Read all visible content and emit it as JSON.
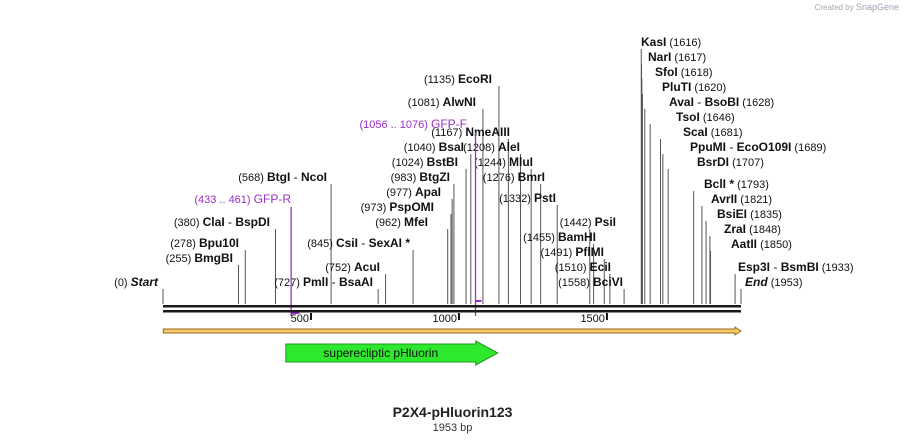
{
  "credit": {
    "prefix": "Created by",
    "brand": "SnapGene"
  },
  "plasmid": {
    "name": "P2X4-pHluorin123",
    "length_label": "1953 bp",
    "length": 1953
  },
  "colors": {
    "line": "#444444",
    "primer": "#9b30c8",
    "feature_fill": "#2ee82e",
    "feature_stroke": "#1a9a1a",
    "arrow_fill": "#f7c66b",
    "arrow_stroke": "#9a6a1a"
  },
  "ticks": [
    500,
    1000,
    1500
  ],
  "ticks_text": [
    "500",
    "1000",
    "1500"
  ],
  "feature": {
    "label": "superecliptic pHluorin",
    "start": 415,
    "end": 1131
  },
  "orf": {
    "start": 1,
    "end": 1953
  },
  "primers": [
    {
      "label": "GFP-R",
      "range": "(433 .. 461)",
      "start": 433,
      "end": 461
    },
    {
      "label": "GFP-F",
      "range": "(1056 .. 1076)",
      "start": 1056,
      "end": 1076
    }
  ],
  "sites": [
    {
      "pos": "(0)",
      "name": "Start",
      "partner": "",
      "bp": 0,
      "italic": true
    },
    {
      "pos": "(255)",
      "name": "BmgBI",
      "partner": "",
      "bp": 255
    },
    {
      "pos": "(278)",
      "name": "Bpu10I",
      "partner": "",
      "bp": 278
    },
    {
      "pos": "(380)",
      "name": "ClaI",
      "partner": "BspDI",
      "bp": 380
    },
    {
      "pos": "(568)",
      "name": "BtgI",
      "partner": "NcoI",
      "bp": 568
    },
    {
      "pos": "(727)",
      "name": "PmlI",
      "partner": "BsaAI",
      "bp": 727
    },
    {
      "pos": "(752)",
      "name": "AcuI",
      "partner": "",
      "bp": 752
    },
    {
      "pos": "(845)",
      "name": "CsiI",
      "partner": "SexAI *",
      "bp": 845
    },
    {
      "pos": "(962)",
      "name": "MfeI",
      "partner": "",
      "bp": 962
    },
    {
      "pos": "(973)",
      "name": "PspOMI",
      "partner": "",
      "bp": 973
    },
    {
      "pos": "(977)",
      "name": "ApaI",
      "partner": "",
      "bp": 977
    },
    {
      "pos": "(983)",
      "name": "BtgZI",
      "partner": "",
      "bp": 983
    },
    {
      "pos": "(1024)",
      "name": "BstBI",
      "partner": "",
      "bp": 1024
    },
    {
      "pos": "(1040)",
      "name": "BsaI",
      "partner": "",
      "bp": 1040
    },
    {
      "pos": "(1081)",
      "name": "AlwNI",
      "partner": "",
      "bp": 1081
    },
    {
      "pos": "(1135)",
      "name": "EcoRI",
      "partner": "",
      "bp": 1135
    },
    {
      "pos": "(1167)",
      "name": "NmeAIII",
      "partner": "",
      "bp": 1167
    },
    {
      "pos": "(1208)",
      "name": "AleI",
      "partner": "",
      "bp": 1208
    },
    {
      "pos": "(1244)",
      "name": "MluI",
      "partner": "",
      "bp": 1244
    },
    {
      "pos": "(1276)",
      "name": "BmrI",
      "partner": "",
      "bp": 1276
    },
    {
      "pos": "(1332)",
      "name": "PstI",
      "partner": "",
      "bp": 1332
    },
    {
      "pos": "(1442)",
      "name": "PsiI",
      "partner": "",
      "bp": 1442
    },
    {
      "pos": "(1455)",
      "name": "BamHI",
      "partner": "",
      "bp": 1455
    },
    {
      "pos": "(1491)",
      "name": "PflMI",
      "partner": "",
      "bp": 1491
    },
    {
      "pos": "(1510)",
      "name": "EciI",
      "partner": "",
      "bp": 1510
    },
    {
      "pos": "(1558)",
      "name": "BciVI",
      "partner": "",
      "bp": 1558
    },
    {
      "pos": "(1616)",
      "name": "KasI",
      "partner": "",
      "bp": 1616
    },
    {
      "pos": "(1617)",
      "name": "NarI",
      "partner": "",
      "bp": 1617
    },
    {
      "pos": "(1618)",
      "name": "SfoI",
      "partner": "",
      "bp": 1618
    },
    {
      "pos": "(1620)",
      "name": "PluTI",
      "partner": "",
      "bp": 1620
    },
    {
      "pos": "(1628)",
      "name": "AvaI",
      "partner": "BsoBI",
      "bp": 1628
    },
    {
      "pos": "(1646)",
      "name": "TsoI",
      "partner": "",
      "bp": 1646
    },
    {
      "pos": "(1681)",
      "name": "ScaI",
      "partner": "",
      "bp": 1681
    },
    {
      "pos": "(1689)",
      "name": "PpuMI",
      "partner": "EcoO109I",
      "bp": 1689
    },
    {
      "pos": "(1707)",
      "name": "BsrDI",
      "partner": "",
      "bp": 1707
    },
    {
      "pos": "(1793)",
      "name": "BclI *",
      "partner": "",
      "bp": 1793
    },
    {
      "pos": "(1821)",
      "name": "AvrII",
      "partner": "",
      "bp": 1821
    },
    {
      "pos": "(1835)",
      "name": "BsiEI",
      "partner": "",
      "bp": 1835
    },
    {
      "pos": "(1848)",
      "name": "ZraI",
      "partner": "",
      "bp": 1848
    },
    {
      "pos": "(1850)",
      "name": "AatII",
      "partner": "",
      "bp": 1850
    },
    {
      "pos": "(1933)",
      "name": "Esp3I",
      "partner": "BsmBI",
      "bp": 1933
    },
    {
      "pos": "(1953)",
      "name": "End",
      "partner": "",
      "bp": 1953,
      "italic": true
    }
  ]
}
